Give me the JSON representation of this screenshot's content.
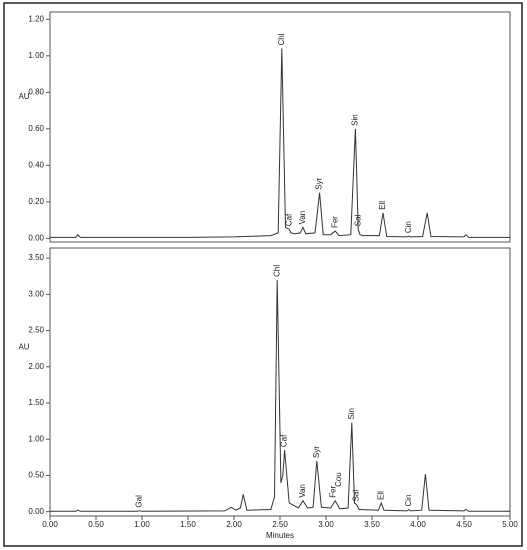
{
  "chart_data": [
    {
      "type": "line",
      "ylabel": "AU",
      "color": "#333333",
      "xlim": [
        0,
        5
      ],
      "ylim": [
        -0.02,
        1.24
      ],
      "yticks": [
        {
          "value": 0,
          "label": "0.00"
        },
        {
          "value": 0.2,
          "label": "0.20"
        },
        {
          "value": 0.4,
          "label": "0.40"
        },
        {
          "value": 0.6,
          "label": "0.60"
        },
        {
          "value": 0.8,
          "label": "0.80"
        },
        {
          "value": 1.0,
          "label": "1.00"
        },
        {
          "value": 1.2,
          "label": "1.20"
        }
      ],
      "x": [
        0,
        0.28,
        0.3,
        0.33,
        1.5,
        2.0,
        2.4,
        2.48,
        2.52,
        2.56,
        2.6,
        2.62,
        2.66,
        2.72,
        2.75,
        2.78,
        2.88,
        2.93,
        2.97,
        3.05,
        3.1,
        3.14,
        3.27,
        3.32,
        3.35,
        3.37,
        3.4,
        3.58,
        3.62,
        3.66,
        3.88,
        3.9,
        3.92,
        4.05,
        4.1,
        4.14,
        4.5,
        4.52,
        4.55,
        5.0
      ],
      "values": [
        0.005,
        0.005,
        0.02,
        0.005,
        0.005,
        0.008,
        0.015,
        0.03,
        1.04,
        0.06,
        0.05,
        0.03,
        0.025,
        0.03,
        0.06,
        0.025,
        0.03,
        0.25,
        0.02,
        0.02,
        0.04,
        0.015,
        0.02,
        0.6,
        0.05,
        0.02,
        0.015,
        0.015,
        0.14,
        0.01,
        0.008,
        0.012,
        0.008,
        0.01,
        0.14,
        0.01,
        0.008,
        0.02,
        0.005,
        0.005
      ],
      "annotations": [
        {
          "text": "Chl",
          "x": 2.52,
          "y": 1.04
        },
        {
          "text": "Caf",
          "x": 2.6,
          "y": 0.05
        },
        {
          "text": "Van",
          "x": 2.75,
          "y": 0.06
        },
        {
          "text": "Syr",
          "x": 2.93,
          "y": 0.25
        },
        {
          "text": "Fer",
          "x": 3.1,
          "y": 0.04
        },
        {
          "text": "Sin",
          "x": 3.32,
          "y": 0.6
        },
        {
          "text": "Sal",
          "x": 3.35,
          "y": 0.05
        },
        {
          "text": "Ell",
          "x": 3.62,
          "y": 0.14
        },
        {
          "text": "Cin",
          "x": 3.9,
          "y": 0.012
        }
      ]
    },
    {
      "type": "line",
      "ylabel": "AU",
      "xlabel": "Minutes",
      "color": "#333333",
      "xlim": [
        0,
        5
      ],
      "ylim": [
        -0.06,
        3.64
      ],
      "xticks": [
        {
          "value": 0,
          "label": "0.00"
        },
        {
          "value": 0.5,
          "label": "0.50"
        },
        {
          "value": 1.0,
          "label": "1.00"
        },
        {
          "value": 1.5,
          "label": "1.50"
        },
        {
          "value": 2.0,
          "label": "2.00"
        },
        {
          "value": 2.5,
          "label": "2.50"
        },
        {
          "value": 3.0,
          "label": "3.00"
        },
        {
          "value": 3.5,
          "label": "3.50"
        },
        {
          "value": 4.0,
          "label": "4.00"
        },
        {
          "value": 4.5,
          "label": "4.50"
        },
        {
          "value": 5.0,
          "label": "5.00"
        }
      ],
      "yticks": [
        {
          "value": 0,
          "label": "0.00"
        },
        {
          "value": 0.5,
          "label": "0.50"
        },
        {
          "value": 1.0,
          "label": "1.00"
        },
        {
          "value": 1.5,
          "label": "1.50"
        },
        {
          "value": 2.0,
          "label": "2.00"
        },
        {
          "value": 2.5,
          "label": "2.50"
        },
        {
          "value": 3.0,
          "label": "3.00"
        },
        {
          "value": 3.5,
          "label": "3.50"
        }
      ],
      "x": [
        0,
        0.28,
        0.3,
        0.33,
        0.95,
        0.97,
        1.0,
        1.9,
        1.97,
        2.02,
        2.07,
        2.1,
        2.14,
        2.4,
        2.44,
        2.47,
        2.51,
        2.53,
        2.55,
        2.6,
        2.7,
        2.75,
        2.8,
        2.86,
        2.9,
        2.95,
        3.05,
        3.1,
        3.15,
        3.24,
        3.28,
        3.31,
        3.33,
        3.36,
        3.57,
        3.6,
        3.63,
        3.88,
        3.9,
        3.92,
        4.04,
        4.08,
        4.12,
        4.5,
        4.52,
        4.55,
        5.0
      ],
      "values": [
        0.005,
        0.005,
        0.02,
        0.005,
        0.005,
        0.015,
        0.005,
        0.01,
        0.06,
        0.02,
        0.05,
        0.24,
        0.02,
        0.03,
        0.2,
        3.2,
        0.4,
        0.5,
        0.85,
        0.12,
        0.05,
        0.15,
        0.05,
        0.06,
        0.7,
        0.06,
        0.05,
        0.15,
        0.04,
        0.05,
        1.23,
        0.12,
        0.1,
        0.03,
        0.02,
        0.12,
        0.02,
        0.01,
        0.03,
        0.01,
        0.02,
        0.52,
        0.02,
        0.01,
        0.03,
        0.005,
        0.005
      ],
      "annotations": [
        {
          "text": "Gal",
          "x": 0.97,
          "y": 0.015
        },
        {
          "text": "Chl",
          "x": 2.47,
          "y": 3.2
        },
        {
          "text": "Caf",
          "x": 2.55,
          "y": 0.85
        },
        {
          "text": "Van",
          "x": 2.75,
          "y": 0.15
        },
        {
          "text": "Syr",
          "x": 2.9,
          "y": 0.7
        },
        {
          "text": "Fer",
          "x": 3.08,
          "y": 0.15
        },
        {
          "text": "Cou",
          "x": 3.14,
          "y": 0.3
        },
        {
          "text": "Sin",
          "x": 3.28,
          "y": 1.23
        },
        {
          "text": "Sal",
          "x": 3.33,
          "y": 0.1
        },
        {
          "text": "Ell",
          "x": 3.6,
          "y": 0.12
        },
        {
          "text": "Cin",
          "x": 3.9,
          "y": 0.03
        }
      ]
    }
  ]
}
